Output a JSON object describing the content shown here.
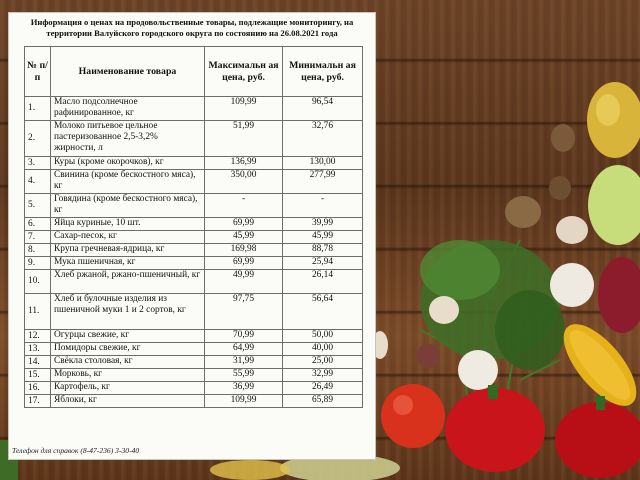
{
  "document": {
    "title_line1": "Информация о ценах на продовольственные товары, подлежащие мониторингу, на",
    "title_line2": "территории Валуйского городского округа по состоянию на 26.08.2021 года",
    "phone_note": "Телефон для справок (8-47-236) 3-30-40"
  },
  "table": {
    "headers": {
      "num": "№ п/п",
      "name": "Наименование товара",
      "max": "Максимальн ая цена, руб.",
      "min": "Минимальн ая цена, руб."
    },
    "rows": [
      {
        "n": "1.",
        "name": "Масло подсолнечное рафинированное, кг",
        "max": "109,99",
        "min": "96,54"
      },
      {
        "n": "2.",
        "name": "Молоко питьевое цельное пастеризованное 2,5-3,2% жирности, л",
        "max": "51,99",
        "min": "32,76"
      },
      {
        "n": "3.",
        "name": "Куры (кроме окорочков), кг",
        "max": "136,99",
        "min": "130,00"
      },
      {
        "n": "4.",
        "name": "Свинина (кроме бескостного мяса), кг",
        "max": "350,00",
        "min": "277,99"
      },
      {
        "n": "5.",
        "name": "Говядина (кроме бескостного мяса), кг",
        "max": "-",
        "min": "-"
      },
      {
        "n": "6.",
        "name": "Яйца куриные, 10 шт.",
        "max": "69,99",
        "min": "39,99"
      },
      {
        "n": "7.",
        "name": "Сахар-песок, кг",
        "max": "45,99",
        "min": "45,99"
      },
      {
        "n": "8.",
        "name": "Крупа гречневая-ядрица, кг",
        "max": "169,98",
        "min": "88,78"
      },
      {
        "n": "9.",
        "name": "Мука пшеничная, кг",
        "max": "69,99",
        "min": "25,94"
      },
      {
        "n": "10.",
        "name": "Хлеб ржаной, ржано-пшеничный, кг",
        "max": "49,99",
        "min": "26,14"
      },
      {
        "n": "11.",
        "name": "Хлеб и булочные изделия из пшеничной муки 1 и 2 сортов, кг",
        "max": "97,75",
        "min": "56,64"
      },
      {
        "n": "12.",
        "name": "Огурцы свежие, кг",
        "max": "70,99",
        "min": "50,00"
      },
      {
        "n": "13.",
        "name": "Помидоры свежие, кг",
        "max": "64,99",
        "min": "40,00"
      },
      {
        "n": "14.",
        "name": "Свёкла столовая, кг",
        "max": "31,99",
        "min": "25,00"
      },
      {
        "n": "15.",
        "name": "Морковь, кг",
        "max": "55,99",
        "min": "32,99"
      },
      {
        "n": "16.",
        "name": "Картофель, кг",
        "max": "36,99",
        "min": "26,49"
      },
      {
        "n": "17.",
        "name": "Яблоки, кг",
        "max": "109,99",
        "min": "65,89"
      }
    ]
  }
}
